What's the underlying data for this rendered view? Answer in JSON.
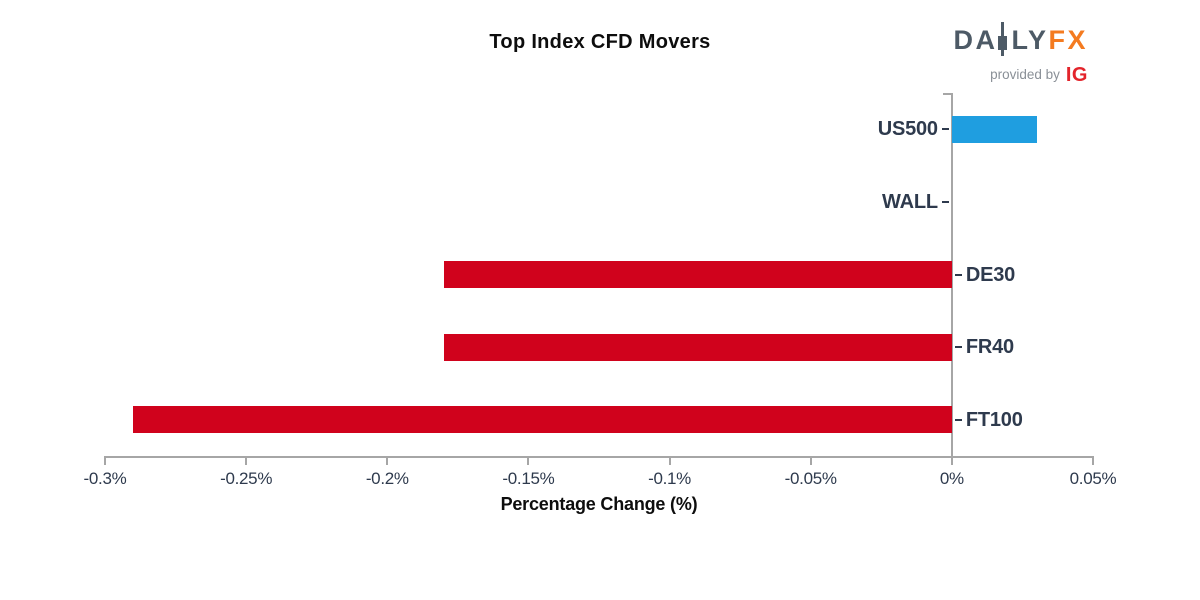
{
  "logo": {
    "brand_left": "DA",
    "brand_right": "LY",
    "brand_suffix": "FX",
    "provided_by": "provided by",
    "ig": "IG",
    "colors": {
      "slate": "#4d5a66",
      "orange": "#f47b20",
      "ig_red": "#e3242b",
      "gray": "#8a9097"
    }
  },
  "chart_data": {
    "type": "bar",
    "orientation": "horizontal",
    "title": "Top Index CFD Movers",
    "xlabel": "Percentage Change (%)",
    "categories": [
      "US500",
      "WALL",
      "DE30",
      "FR40",
      "FT100"
    ],
    "values": [
      0.03,
      0.0,
      -0.18,
      -0.18,
      -0.29
    ],
    "value_unit": "%",
    "xlim": [
      -0.3,
      0.05
    ],
    "ticks": [
      {
        "value": -0.3,
        "label": "-0.3%"
      },
      {
        "value": -0.25,
        "label": "-0.25%"
      },
      {
        "value": -0.2,
        "label": "-0.2%"
      },
      {
        "value": -0.15,
        "label": "-0.15%"
      },
      {
        "value": -0.1,
        "label": "-0.1%"
      },
      {
        "value": -0.05,
        "label": "-0.05%"
      },
      {
        "value": 0,
        "label": "0%"
      },
      {
        "value": 0.05,
        "label": "0.05%"
      }
    ],
    "grid": false,
    "legend": null,
    "colors": {
      "positive": "#1f9ee0",
      "negative": "#d0021c",
      "axis": "#a6a6a6",
      "tick_label": "#2e3a4d",
      "category_label": "#2e3a4d",
      "title": "#0d0d0d",
      "xlabel": "#0d0d0d"
    }
  }
}
